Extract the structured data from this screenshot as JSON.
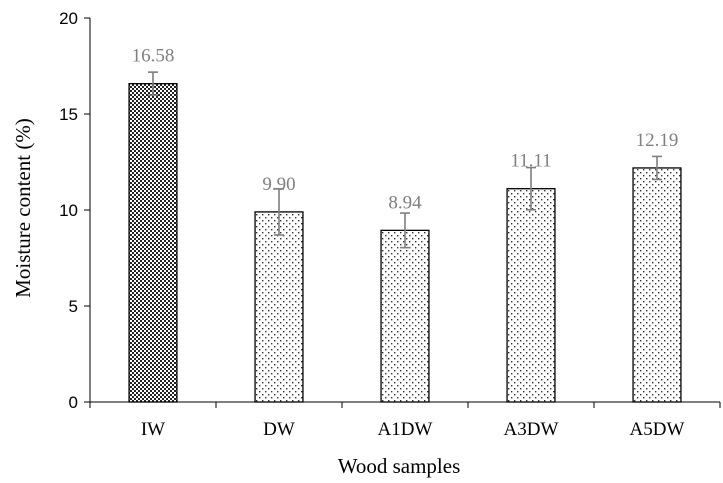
{
  "chart_data": {
    "type": "bar",
    "xlabel": "Wood samples",
    "ylabel": "Moisture content (%)",
    "ylim": [
      0,
      20
    ],
    "yticks": [
      0,
      5,
      10,
      15,
      20
    ],
    "categories": [
      "IW",
      "DW",
      "A1DW",
      "A3DW",
      "A5DW"
    ],
    "values": [
      16.58,
      9.9,
      8.94,
      11.11,
      12.19
    ],
    "data_labels": [
      "16.58",
      "9.90",
      "8.94",
      "11.11",
      "12.19"
    ],
    "error": [
      0.6,
      1.2,
      0.9,
      1.1,
      0.6
    ],
    "patterns": [
      "dense-crosshatch",
      "sparse-dots",
      "sparse-dots",
      "sparse-dots",
      "sparse-dots"
    ],
    "colors": {
      "bar_border": "#000000",
      "error_bar": "#7f7f7f",
      "data_label": "#808080",
      "pattern": "#000000"
    },
    "grid": false,
    "legend": "none"
  }
}
